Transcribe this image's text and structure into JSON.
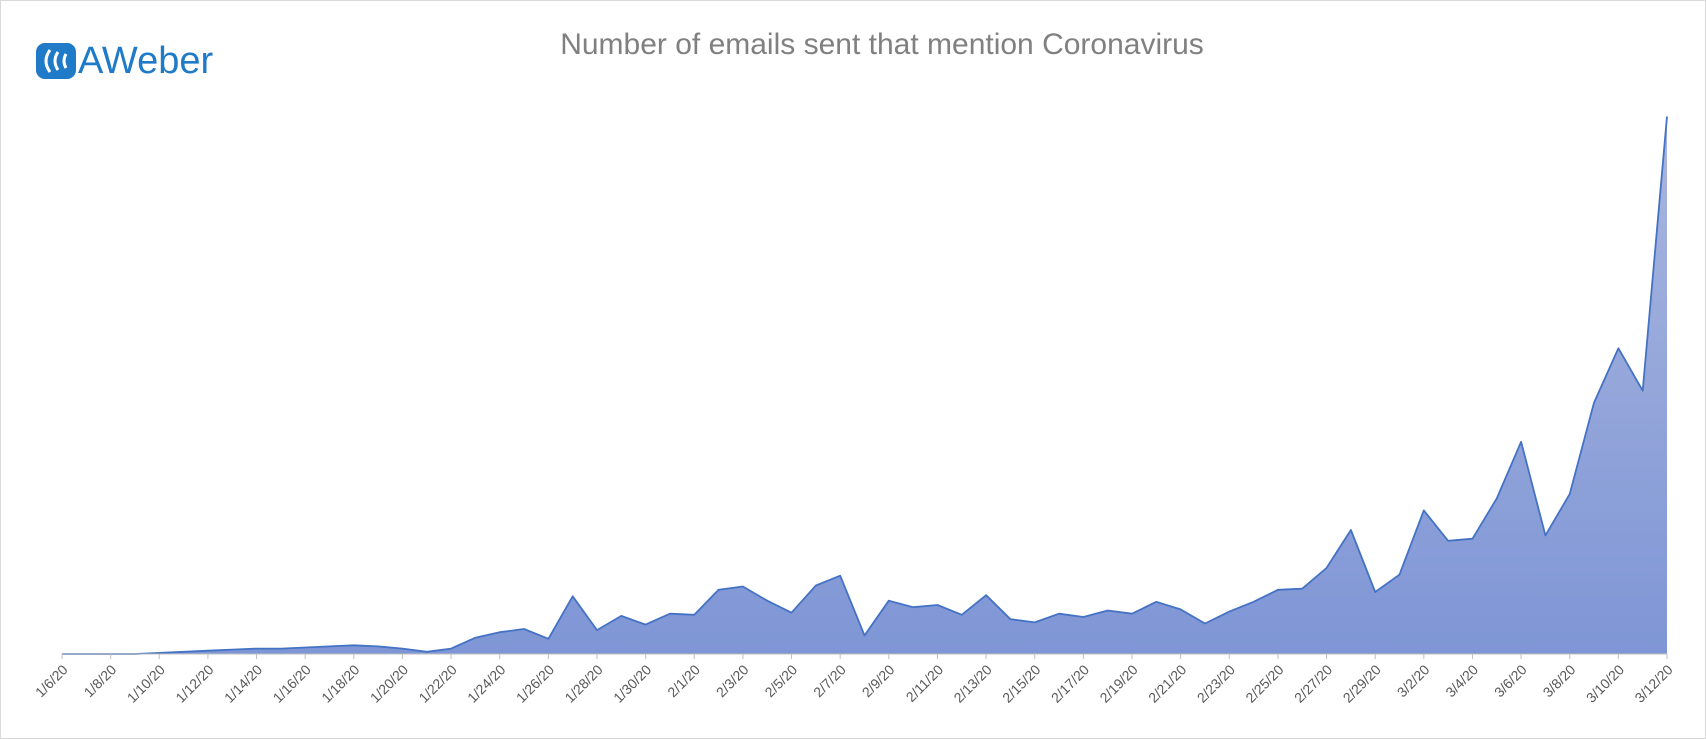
{
  "brand": "AWeber",
  "chart_data": {
    "type": "area",
    "title": "Number of emails sent that mention Coronavirus",
    "categories": [
      "1/6/20",
      null,
      "1/8/20",
      null,
      "1/10/20",
      null,
      "1/12/20",
      null,
      "1/14/20",
      null,
      "1/16/20",
      null,
      "1/18/20",
      null,
      "1/20/20",
      null,
      "1/22/20",
      null,
      "1/24/20",
      null,
      "1/26/20",
      null,
      "1/28/20",
      null,
      "1/30/20",
      null,
      "2/1/20",
      null,
      "2/3/20",
      null,
      "2/5/20",
      null,
      "2/7/20",
      null,
      "2/9/20",
      null,
      "2/11/20",
      null,
      "2/13/20",
      null,
      "2/15/20",
      null,
      "2/17/20",
      null,
      "2/19/20",
      null,
      "2/21/20",
      null,
      "2/23/20",
      null,
      "2/25/20",
      null,
      "2/27/20",
      null,
      "2/29/20",
      null,
      "3/2/20",
      null,
      "3/4/20",
      null,
      "3/6/20",
      null,
      "3/8/20",
      null,
      "3/10/20",
      null,
      "3/12/20"
    ],
    "values": [
      0,
      0,
      0,
      0,
      1,
      2,
      3,
      4,
      5,
      5,
      6,
      7,
      8,
      7,
      5,
      2,
      5,
      15,
      20,
      23,
      14,
      53,
      22,
      35,
      27,
      37,
      36,
      59,
      62,
      49,
      38,
      63,
      72,
      17,
      49,
      43,
      45,
      36,
      54,
      32,
      29,
      37,
      34,
      40,
      37,
      48,
      41,
      28,
      39,
      48,
      59,
      60,
      79,
      114,
      57,
      73,
      132,
      104,
      106,
      143,
      195,
      109,
      147,
      231,
      281,
      242,
      494
    ],
    "color": "#4472c4",
    "ylim": [
      0,
      500
    ]
  }
}
